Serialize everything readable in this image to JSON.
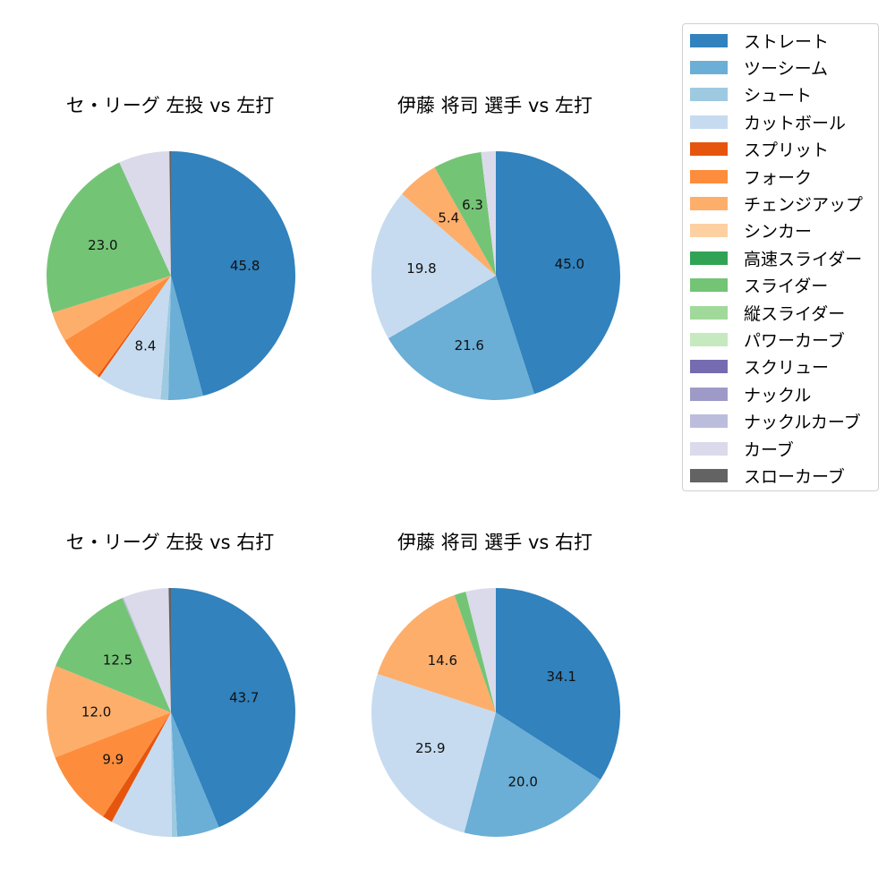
{
  "legend": {
    "items": [
      {
        "label": "ストレート",
        "color": "#3182bd"
      },
      {
        "label": "ツーシーム",
        "color": "#6baed6"
      },
      {
        "label": "シュート",
        "color": "#9ecae1"
      },
      {
        "label": "カットボール",
        "color": "#c6dbef"
      },
      {
        "label": "スプリット",
        "color": "#e6550d"
      },
      {
        "label": "フォーク",
        "color": "#fd8d3c"
      },
      {
        "label": "チェンジアップ",
        "color": "#fdae6b"
      },
      {
        "label": "シンカー",
        "color": "#fdd0a2"
      },
      {
        "label": "高速スライダー",
        "color": "#31a354"
      },
      {
        "label": "スライダー",
        "color": "#74c476"
      },
      {
        "label": "縦スライダー",
        "color": "#a1d99b"
      },
      {
        "label": "パワーカーブ",
        "color": "#c7e9c0"
      },
      {
        "label": "スクリュー",
        "color": "#756bb1"
      },
      {
        "label": "ナックル",
        "color": "#9e9ac8"
      },
      {
        "label": "ナックルカーブ",
        "color": "#bcbddc"
      },
      {
        "label": "カーブ",
        "color": "#dadaeb"
      },
      {
        "label": "スローカーブ",
        "color": "#636363"
      }
    ]
  },
  "chart_data": [
    {
      "type": "pie",
      "title": "セ・リーグ 左投 vs 左打",
      "start_angle": 90,
      "direction": "clockwise",
      "label_threshold": 5,
      "categories": [
        "ストレート",
        "ツーシーム",
        "シュート",
        "カットボール",
        "スプリット",
        "フォーク",
        "チェンジアップ",
        "スライダー",
        "カーブ",
        "スローカーブ"
      ],
      "values": [
        45.8,
        4.5,
        1.0,
        8.4,
        0.3,
        6.2,
        3.9,
        23.0,
        6.6,
        0.2
      ],
      "labels": [
        "45.8",
        "",
        "",
        "8.4",
        "",
        "",
        "",
        "23.0",
        "",
        ""
      ]
    },
    {
      "type": "pie",
      "title": "伊藤 将司 選手 vs 左打",
      "start_angle": 90,
      "direction": "clockwise",
      "label_threshold": 5,
      "categories": [
        "ストレート",
        "ツーシーム",
        "カットボール",
        "チェンジアップ",
        "スライダー",
        "カーブ"
      ],
      "values": [
        45.0,
        21.6,
        19.8,
        5.4,
        6.3,
        1.9
      ],
      "labels": [
        "45.0",
        "21.6",
        "19.8",
        "5.4",
        "6.3",
        ""
      ]
    },
    {
      "type": "pie",
      "title": "セ・リーグ 左投 vs 右打",
      "start_angle": 90,
      "direction": "clockwise",
      "label_threshold": 5,
      "categories": [
        "ストレート",
        "ツーシーム",
        "シュート",
        "カットボール",
        "スプリット",
        "フォーク",
        "チェンジアップ",
        "スライダー",
        "ナックルカーブ",
        "カーブ",
        "スローカーブ"
      ],
      "values": [
        43.7,
        5.5,
        0.7,
        8.0,
        1.3,
        9.9,
        12.0,
        12.5,
        0.2,
        5.9,
        0.3
      ],
      "labels": [
        "43.7",
        "",
        "",
        "",
        "",
        "9.9",
        "12.0",
        "12.5",
        "",
        "",
        ""
      ]
    },
    {
      "type": "pie",
      "title": "伊藤 将司 選手 vs 右打",
      "start_angle": 90,
      "direction": "clockwise",
      "label_threshold": 5,
      "categories": [
        "ストレート",
        "ツーシーム",
        "カットボール",
        "チェンジアップ",
        "スライダー",
        "カーブ"
      ],
      "values": [
        34.1,
        20.0,
        25.9,
        14.6,
        1.5,
        3.9
      ],
      "labels": [
        "34.1",
        "20.0",
        "25.9",
        "14.6",
        "",
        ""
      ]
    }
  ]
}
